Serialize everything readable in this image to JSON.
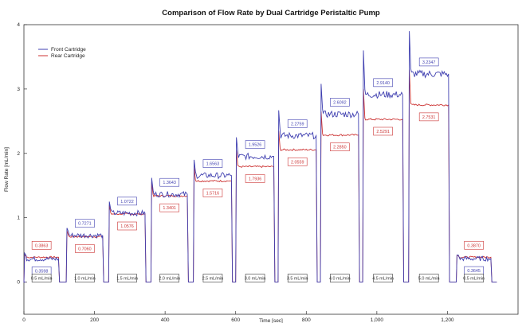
{
  "chart_data": {
    "type": "line",
    "title": "Comparison of Flow Rate by Dual Cartridge Peristaltic Pump",
    "xlabel": "Time [sec]",
    "ylabel": "Flow Rate [mL/min]",
    "xlim": [
      0,
      1400
    ],
    "ylim": [
      -0.5,
      4.0
    ],
    "x_ticks": [
      {
        "value": 0,
        "label": "0"
      },
      {
        "value": 200,
        "label": "200"
      },
      {
        "value": 400,
        "label": "400"
      },
      {
        "value": 600,
        "label": "600"
      },
      {
        "value": 800,
        "label": "800"
      },
      {
        "value": 1000,
        "label": "1,000"
      },
      {
        "value": 1200,
        "label": "1,200"
      }
    ],
    "y_ticks": [
      {
        "value": 0,
        "label": "0"
      },
      {
        "value": 1,
        "label": "1"
      },
      {
        "value": 2,
        "label": "2"
      },
      {
        "value": 3,
        "label": "3"
      },
      {
        "value": 4,
        "label": "4"
      }
    ],
    "grid": false,
    "legend_position": "top-left",
    "series": [
      {
        "name": "Front Cartridge",
        "color": "#3f3fb0"
      },
      {
        "name": "Rear Cartridge",
        "color": "#cc3333"
      }
    ],
    "segments": [
      {
        "start": 0,
        "end": 100,
        "front": 0.3598,
        "rear": 0.3863,
        "front_spike": 0.45,
        "rear_spike": 0.42,
        "setpoint": "0.5 mL/min"
      },
      {
        "start": 120,
        "end": 225,
        "front": 0.7271,
        "rear": 0.706,
        "front_spike": 0.84,
        "rear_spike": 0.8,
        "setpoint": "1.0 mL/min"
      },
      {
        "start": 240,
        "end": 345,
        "front": 1.0722,
        "rear": 1.0576,
        "front_spike": 1.25,
        "rear_spike": 1.2,
        "setpoint": "1.5 mL/min"
      },
      {
        "start": 360,
        "end": 465,
        "front": 1.3643,
        "rear": 1.3401,
        "front_spike": 1.62,
        "rear_spike": 1.55,
        "setpoint": "2.0 mL/min"
      },
      {
        "start": 480,
        "end": 590,
        "front": 1.6563,
        "rear": 1.5716,
        "front_spike": 1.9,
        "rear_spike": 1.8,
        "setpoint": "2.5 mL/min"
      },
      {
        "start": 600,
        "end": 710,
        "front": 1.9526,
        "rear": 1.7936,
        "front_spike": 2.25,
        "rear_spike": 2.05,
        "setpoint": "3.0 mL/min"
      },
      {
        "start": 720,
        "end": 830,
        "front": 2.2759,
        "rear": 2.0559,
        "front_spike": 2.67,
        "rear_spike": 2.35,
        "setpoint": "3.5 mL/min"
      },
      {
        "start": 840,
        "end": 950,
        "front": 2.6092,
        "rear": 2.285,
        "front_spike": 3.08,
        "rear_spike": 2.65,
        "setpoint": "4.0 mL/min"
      },
      {
        "start": 960,
        "end": 1075,
        "front": 2.914,
        "rear": 2.5291,
        "front_spike": 3.6,
        "rear_spike": 3.0,
        "setpoint": "4.5 mL/min"
      },
      {
        "start": 1090,
        "end": 1205,
        "front": 3.2347,
        "rear": 2.7531,
        "front_spike": 3.9,
        "rear_spike": 3.3,
        "setpoint": "5.0 mL/min"
      },
      {
        "start": 1225,
        "end": 1325,
        "front": 0.3645,
        "rear": 0.387,
        "front_spike": 0.42,
        "rear_spike": 0.42,
        "setpoint": "0.5 mL/min"
      }
    ]
  }
}
